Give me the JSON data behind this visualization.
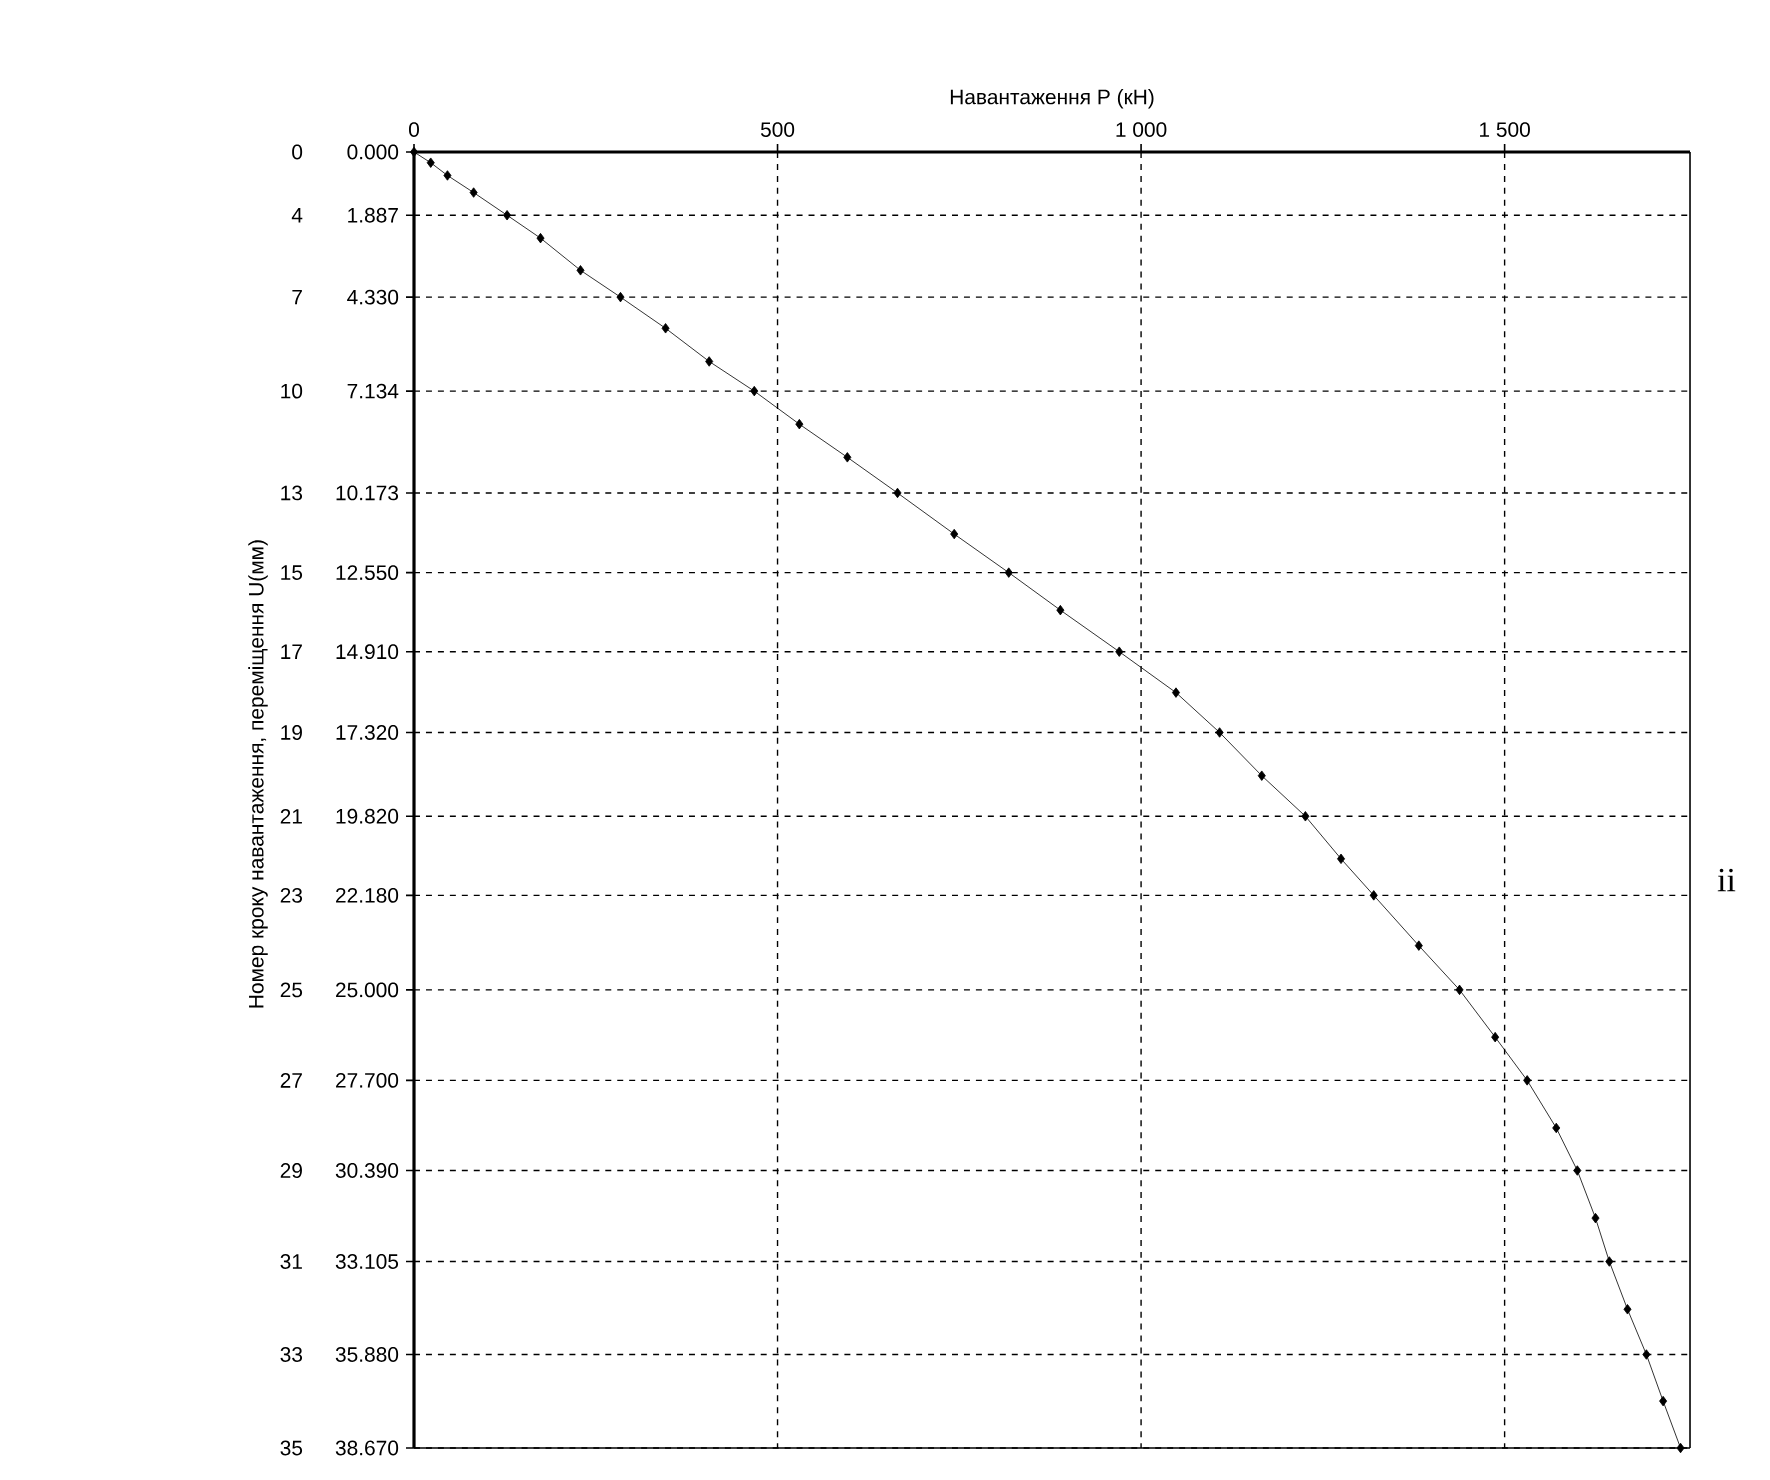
{
  "chart_data": {
    "type": "line",
    "xlabel": "Навантаження P (кН)",
    "ylabel": "Номер кроку навантаження, переміщення U(мм)",
    "x": [
      0,
      23,
      46,
      82,
      128,
      174,
      229,
      284,
      346,
      406,
      468,
      530,
      596,
      665,
      743,
      818,
      889,
      970,
      1048,
      1108,
      1166,
      1226,
      1275,
      1320,
      1382,
      1438,
      1487,
      1531,
      1571,
      1600,
      1625,
      1644,
      1669,
      1695,
      1718,
      1742
    ],
    "series": [
      {
        "color": "#000000",
        "values": [
          0,
          0.32,
          0.7,
          1.21,
          1.887,
          2.57,
          3.53,
          4.33,
          5.26,
          6.25,
          7.134,
          8.12,
          9.11,
          10.173,
          11.4,
          12.55,
          13.67,
          14.91,
          16.13,
          17.32,
          18.61,
          19.82,
          21.09,
          22.18,
          23.68,
          25.0,
          26.41,
          27.7,
          29.12,
          30.39,
          31.81,
          33.105,
          34.53,
          35.88,
          37.27,
          38.67
        ]
      }
    ],
    "xlim": [
      0,
      1755
    ],
    "ylim": [
      38.67,
      0
    ],
    "xticks": [
      0,
      500,
      {
        "value": 1000,
        "label": "1 000"
      },
      {
        "value": 1500,
        "label": "1 500"
      }
    ],
    "yticks": [
      {
        "value": 0,
        "label": "0.000"
      },
      {
        "value": 1.887,
        "label": "1.887"
      },
      {
        "value": 4.33,
        "label": "4.330"
      },
      {
        "value": 7.134,
        "label": "7.134"
      },
      {
        "value": 10.173,
        "label": "10.173"
      },
      {
        "value": 12.55,
        "label": "12.550"
      },
      {
        "value": 14.91,
        "label": "14.910"
      },
      {
        "value": 17.32,
        "label": "17.320"
      },
      {
        "value": 19.82,
        "label": "19.820"
      },
      {
        "value": 22.18,
        "label": "22.180"
      },
      {
        "value": 25.0,
        "label": "25.000"
      },
      {
        "value": 27.7,
        "label": "27.700"
      },
      {
        "value": 30.39,
        "label": "30.390"
      },
      {
        "value": 33.105,
        "label": "33.105"
      },
      {
        "value": 35.88,
        "label": "35.880"
      },
      {
        "value": 38.67,
        "label": "38.670"
      }
    ],
    "grid": true,
    "marker": "diamond",
    "line_style": "solid",
    "annotations": [
      "0",
      "4",
      "7",
      "10",
      "13",
      "15",
      "17",
      "19",
      "21",
      "23",
      "25",
      "27",
      "29",
      "31",
      "33",
      "35",
      "іі"
    ]
  }
}
